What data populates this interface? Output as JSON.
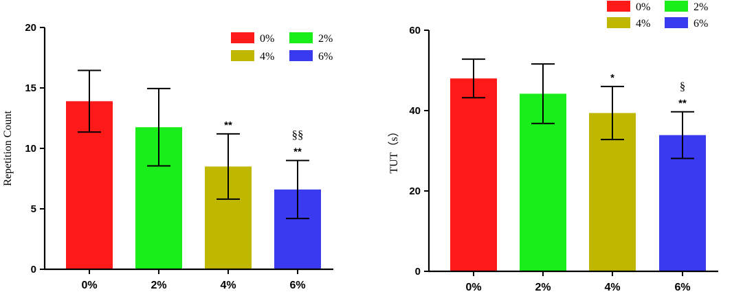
{
  "colors": {
    "0%": "#ff1a1a",
    "2%": "#1aee1a",
    "4%": "#c0b800",
    "6%": "#3a3af0"
  },
  "chart_data": [
    {
      "type": "bar",
      "categories": [
        "0%",
        "2%",
        "4%",
        "6%"
      ],
      "values": [
        13.9,
        11.75,
        8.5,
        6.6
      ],
      "errors": [
        2.55,
        3.2,
        2.7,
        2.4
      ],
      "ylabel": "Repetition Count",
      "ylim": [
        0,
        20
      ],
      "yticks": [
        "0",
        "5",
        "10",
        "15",
        "20"
      ],
      "legend": [
        "0%",
        "2%",
        "4%",
        "6%"
      ],
      "legend_position": "top-right",
      "annotations": [
        {
          "category": "4%",
          "lines": [
            "**"
          ]
        },
        {
          "category": "6%",
          "lines": [
            "§§",
            "**"
          ]
        }
      ]
    },
    {
      "type": "bar",
      "categories": [
        "0%",
        "2%",
        "4%",
        "6%"
      ],
      "values": [
        48,
        44.2,
        39.4,
        33.9
      ],
      "errors": [
        4.8,
        7.4,
        6.6,
        5.8
      ],
      "ylabel": "TUT（s）",
      "ylim": [
        0,
        60
      ],
      "yticks": [
        "0",
        "20",
        "40",
        "60"
      ],
      "legend": [
        "0%",
        "2%",
        "4%",
        "6%"
      ],
      "legend_position": "top-right",
      "annotations": [
        {
          "category": "4%",
          "lines": [
            "*"
          ]
        },
        {
          "category": "6%",
          "lines": [
            "§",
            "**"
          ]
        }
      ]
    }
  ]
}
